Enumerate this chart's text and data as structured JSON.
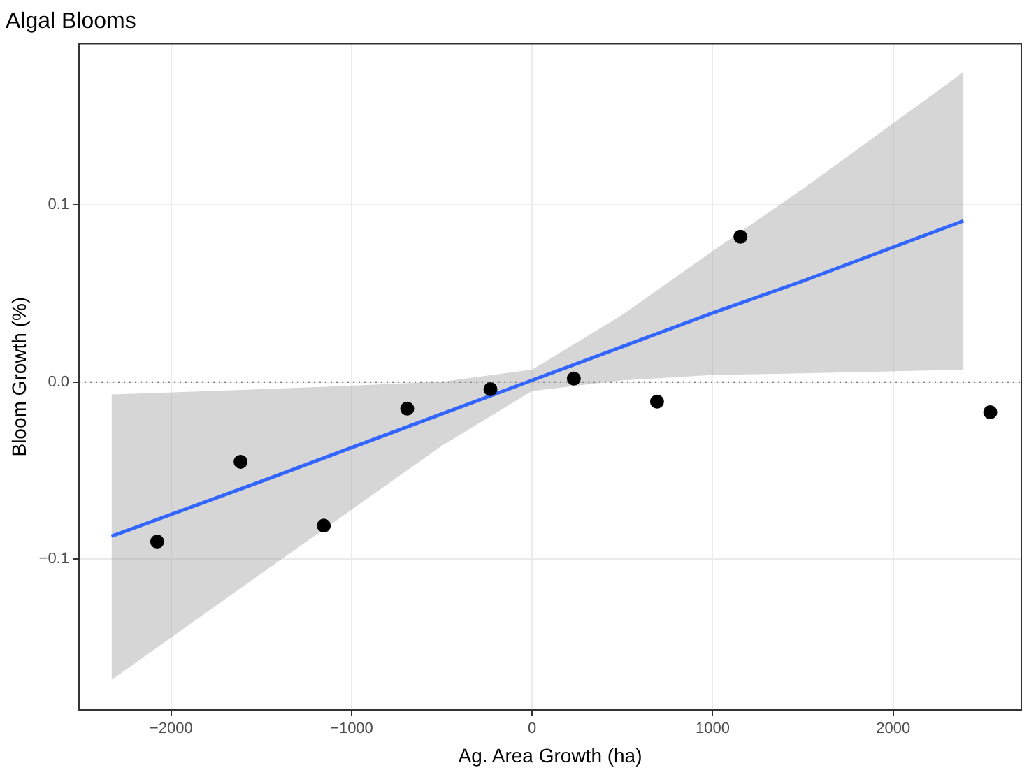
{
  "chart_data": {
    "type": "scatter",
    "title": "Algal Blooms",
    "xlabel": "Ag. Area Growth (ha)",
    "ylabel": "Bloom Growth (%)",
    "xlim": [
      -2510,
      2710
    ],
    "ylim": [
      -0.185,
      0.191
    ],
    "xticks": [
      {
        "value": -2000,
        "label": "−2000"
      },
      {
        "value": -1000,
        "label": "−1000"
      },
      0,
      1000,
      2000
    ],
    "yticks": [
      {
        "value": -0.1,
        "label": "−0.1"
      },
      {
        "value": 0,
        "label": "0.0"
      },
      0.1
    ],
    "grid": true,
    "legend": false,
    "marker": "circle",
    "ref_lines": [
      {
        "axis": "y",
        "value": 0,
        "color": "#555555",
        "line_style": "dotted"
      }
    ],
    "series": [
      {
        "type": "scatter",
        "color": "#000000",
        "x": [
          -2077,
          -1615,
          -1154,
          -692,
          -231,
          231,
          692,
          1154,
          2538
        ],
        "values": [
          -0.09,
          -0.045,
          -0.081,
          -0.015,
          -0.004,
          0.002,
          -0.011,
          0.082,
          -0.017
        ]
      },
      {
        "type": "line",
        "color": "#3366ff",
        "marker": "none",
        "line_style": "solid",
        "x": [
          -2330,
          -1500,
          -1000,
          -500,
          0,
          500,
          1000,
          1500,
          2390
        ],
        "values": [
          -0.087,
          -0.056,
          -0.037,
          -0.018,
          0.001,
          0.02,
          0.039,
          0.057,
          0.091
        ],
        "lower": [
          -0.168,
          -0.108,
          -0.072,
          -0.036,
          -0.005,
          0.001,
          0.004,
          0.005,
          0.007
        ],
        "upper": [
          -0.007,
          -0.004,
          -0.002,
          0.0002,
          0.007,
          0.038,
          0.074,
          0.109,
          0.175
        ]
      }
    ]
  }
}
